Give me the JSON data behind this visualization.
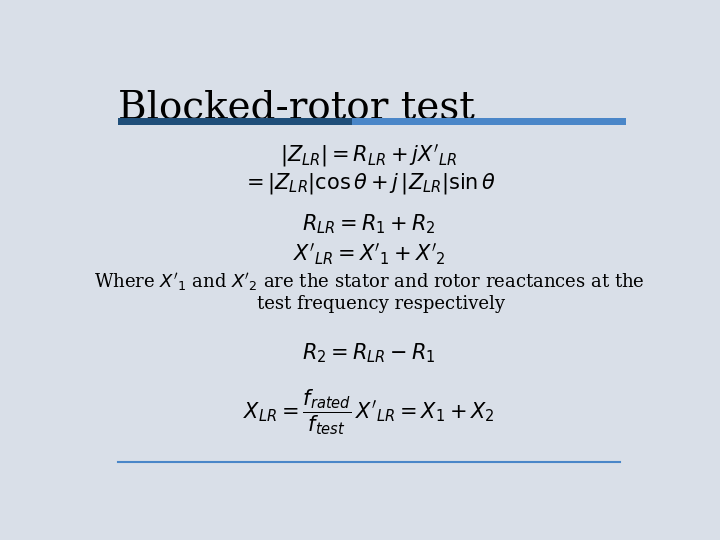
{
  "title": "Blocked-rotor test",
  "background_color": "#d9dfe8",
  "title_color": "#000000",
  "title_fontsize": 28,
  "bar_color_dark": "#1f4e79",
  "bar_color_light": "#4a86c8",
  "text_color": "#000000",
  "eq_fontsize": 15,
  "text_fontsize": 13,
  "bottom_line_color": "#4a86c8"
}
